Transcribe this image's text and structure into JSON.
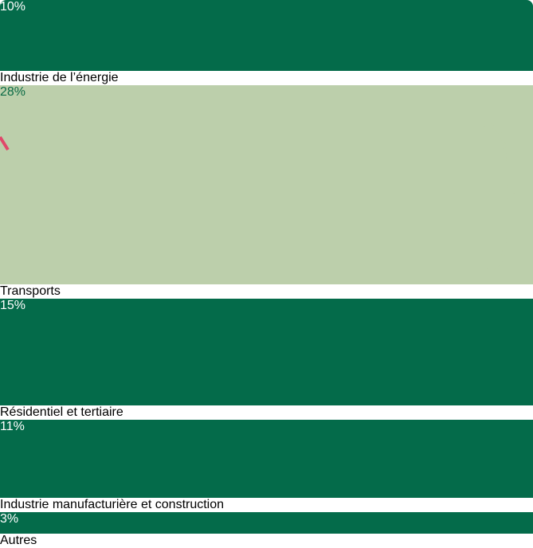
{
  "chart_data": {
    "type": "stacked-bar",
    "categories": [
      "Industrie de l’énergie",
      "Transports",
      "Résidentiel et tertiaire",
      "Industrie manufacturière\net construction",
      "Autres"
    ],
    "values": [
      10,
      28,
      15,
      11,
      3
    ],
    "value_labels": [
      "10%",
      "28%",
      "15%",
      "11%",
      "3%"
    ],
    "colors": [
      "#046b4a",
      "#bccfab",
      "#046b4a",
      "#046b4a",
      "#046b4a"
    ]
  }
}
